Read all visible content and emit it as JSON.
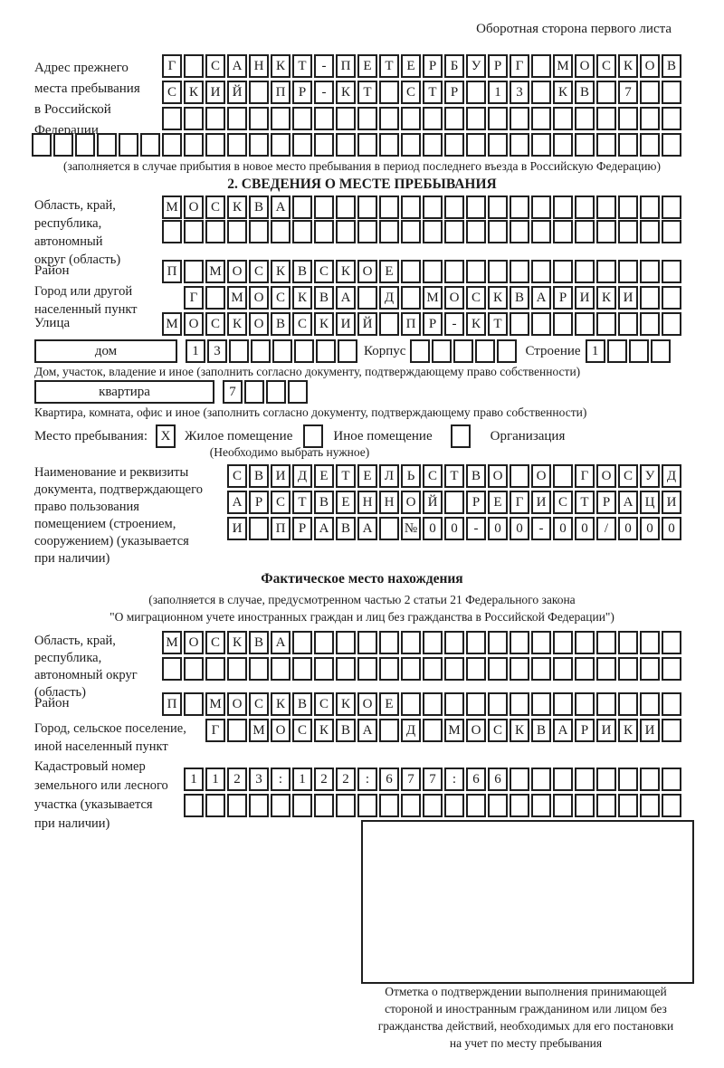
{
  "header": {
    "title": "Оборотная сторона первого листа"
  },
  "colors": {
    "ink": "#1c1c1c",
    "paper": "#ffffff"
  },
  "prev_address": {
    "label": "Адрес прежнего\nместа пребывания\nв Российской\nФедерации",
    "rows": [
      {
        "len": 24,
        "text": "Г САНКТ-ПЕТЕРБУРГ МОСКОВ"
      },
      {
        "len": 24,
        "text": "СКИЙ ПР-КТ СТР 13 КВ 7"
      },
      {
        "len": 24,
        "text": ""
      },
      {
        "len": 30,
        "text": ""
      }
    ],
    "note": "(заполняется в случае прибытия в новое место пребывания в период последнего въезда в Российскую Федерацию)"
  },
  "section2": {
    "title": "2. СВЕДЕНИЯ О МЕСТЕ ПРЕБЫВАНИЯ",
    "region": {
      "label": "Область, край,\nреспублика,\nавтономный\nокруг (область)",
      "rows": [
        {
          "len": 24,
          "text": "МОСКВА"
        },
        {
          "len": 24,
          "text": ""
        }
      ]
    },
    "district": {
      "label": "Район",
      "row": {
        "len": 24,
        "text": "П МОСКВСКОЕ"
      }
    },
    "city": {
      "label": "Город или другой\nнаселенный пункт",
      "row": {
        "len": 23,
        "text": "Г МОСКВА Д МОСКВАРИКИ"
      }
    },
    "street": {
      "label": "Улица",
      "row": {
        "len": 24,
        "text": "МОСКОВСКИЙ ПР-КТ"
      }
    },
    "house": {
      "box_label": "дом",
      "cells": {
        "len": 8,
        "text": "13"
      },
      "korpus_label": "Корпус",
      "korpus_cells": {
        "len": 5,
        "text": ""
      },
      "stroenie_label": "Строение",
      "stroenie_cells": {
        "len": 4,
        "text": "1"
      },
      "note": "Дом, участок, владение и иное (заполнить согласно документу, подтверждающему право собственности)"
    },
    "apartment": {
      "box_label": "квартира",
      "cells": {
        "len": 4,
        "text": "7"
      },
      "note": "Квартира, комната, офис и иное (заполнить согласно документу, подтверждающему право собственности)"
    },
    "stay_type": {
      "label": "Место пребывания:",
      "options": [
        {
          "mark": "X",
          "label": "Жилое помещение"
        },
        {
          "mark": "",
          "label": "Иное помещение"
        },
        {
          "mark": "",
          "label": "Организация"
        }
      ],
      "note": "(Необходимо выбрать нужное)"
    },
    "document": {
      "label": "Наименование и реквизиты\nдокумента, подтверждающего\nправо пользования\nпомещением (строением,\nсооружением) (указывается\nпри наличии)",
      "rows": [
        {
          "len": 21,
          "text": "СВИДЕТЕЛЬСТВО О ГОСУД"
        },
        {
          "len": 21,
          "text": "АРСТВЕННОЙ РЕГИСТРАЦИ"
        },
        {
          "len": 21,
          "text": "И ПРАВА №00-00-00/000"
        }
      ]
    }
  },
  "actual_location": {
    "title": "Фактическое место нахождения",
    "note_line1": "(заполняется в случае, предусмотренном частью 2 статьи 21 Федерального закона",
    "note_line2": "\"О миграционном учете иностранных граждан и лиц без гражданства в Российской Федерации\")",
    "region": {
      "label": "Область, край,\nреспублика,\nавтономный округ\n(область)",
      "rows": [
        {
          "len": 24,
          "text": "МОСКВА"
        },
        {
          "len": 24,
          "text": ""
        }
      ]
    },
    "district": {
      "label": "Район",
      "row": {
        "len": 24,
        "text": "П МОСКВСКОЕ"
      }
    },
    "city": {
      "label": "Город, сельское поселение,\nиной населенный пункт",
      "row": {
        "len": 22,
        "text": "Г МОСКВА Д МОСКВАРИКИ"
      }
    },
    "cadastre": {
      "label": "Кадастровый номер\nземельного или лесного\nучастка (указывается\nпри наличии)",
      "rows": [
        {
          "len": 23,
          "text": "1123:122:677:66"
        },
        {
          "len": 23,
          "text": ""
        }
      ]
    }
  },
  "stamp": {
    "note": "Отметка о подтверждении выполнения принимающей\nстороной и иностранным гражданином или лицом без\nгражданства действий, необходимых для его постановки\nна учет по месту пребывания"
  }
}
